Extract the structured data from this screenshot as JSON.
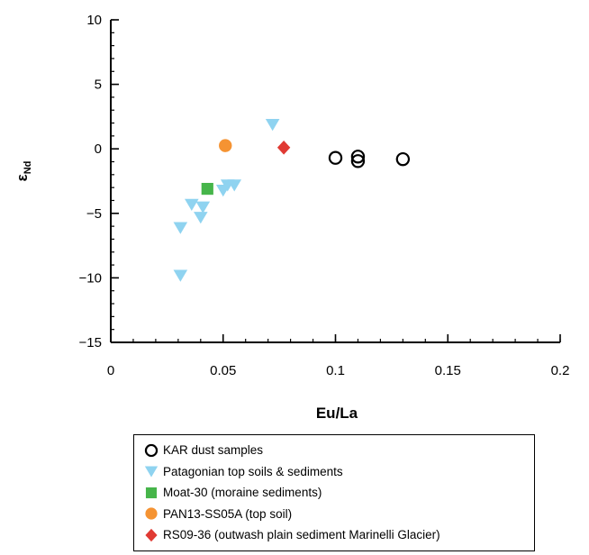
{
  "chart_data": {
    "type": "scatter",
    "xlabel": "Eu/La",
    "ylabel_main": "ε",
    "ylabel_sub": "Nd",
    "xlim": [
      0,
      0.2
    ],
    "ylim": [
      -15,
      10
    ],
    "x_ticks": [
      {
        "value": 0,
        "label": "0"
      },
      {
        "value": 0.05,
        "label": "0.05"
      },
      {
        "value": 0.1,
        "label": "0.1"
      },
      {
        "value": 0.15,
        "label": "0.15"
      },
      {
        "value": 0.2,
        "label": "0.2"
      }
    ],
    "y_ticks": [
      {
        "value": 10,
        "label": "10"
      },
      {
        "value": 5,
        "label": "5"
      },
      {
        "value": 0,
        "label": "0"
      },
      {
        "value": -5,
        "label": "−5"
      },
      {
        "value": -10,
        "label": "−10"
      },
      {
        "value": -15,
        "label": "−15"
      }
    ],
    "y_minor_step": 1,
    "x_minor_step": 0.01,
    "grid": false,
    "legend_position": "bottom",
    "series": [
      {
        "name": "KAR dust samples",
        "marker": "open-circle",
        "color": "#000000",
        "points": [
          [
            0.1,
            -0.7
          ],
          [
            0.11,
            -0.6
          ],
          [
            0.11,
            -0.95
          ],
          [
            0.13,
            -0.8
          ]
        ]
      },
      {
        "name": "Patagonian top soils & sediments",
        "marker": "triangle-down",
        "color": "#8fd3f0",
        "points": [
          [
            0.031,
            -9.8
          ],
          [
            0.031,
            -6.1
          ],
          [
            0.036,
            -4.3
          ],
          [
            0.04,
            -5.3
          ],
          [
            0.041,
            -4.5
          ],
          [
            0.05,
            -3.2
          ],
          [
            0.052,
            -2.8
          ],
          [
            0.055,
            -2.8
          ],
          [
            0.072,
            1.9
          ]
        ]
      },
      {
        "name": "Moat-30 (moraine sediments)",
        "marker": "square",
        "color": "#46b54a",
        "points": [
          [
            0.043,
            -3.1
          ]
        ]
      },
      {
        "name": "PAN13-SS05A (top soil)",
        "marker": "circle",
        "color": "#f59332",
        "points": [
          [
            0.051,
            0.25
          ]
        ]
      },
      {
        "name": "RS09-36 (outwash plain sediment Marinelli Glacier)",
        "marker": "diamond",
        "color": "#e03a33",
        "points": [
          [
            0.077,
            0.1
          ]
        ]
      }
    ]
  }
}
